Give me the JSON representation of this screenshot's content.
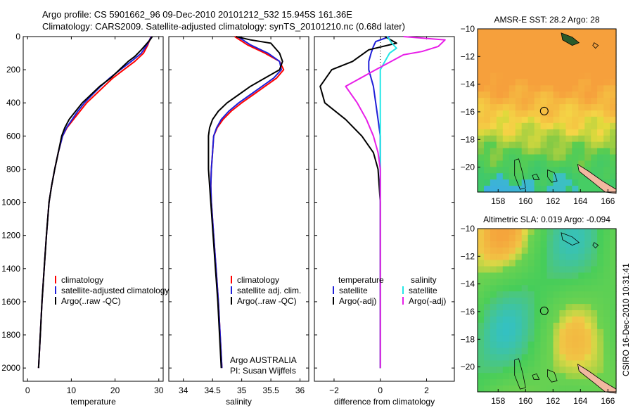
{
  "header": {
    "line1": "Argo profile: CS 5901662_96 09-Dec-2010 20101212_532 15.945S 161.36E",
    "line2": "Climatology: CARS2009. Satellite-adjusted climatology: synTS_20101210.nc (0.68d later)"
  },
  "side_label": "CSIRO 16-Dec-2010 10:31:41",
  "credit": {
    "line1": "Argo AUSTRALIA",
    "line2": "PI: Susan Wijffels"
  },
  "colors": {
    "red": "#ff0000",
    "blue": "#1f1fd8",
    "black": "#000000",
    "cyan": "#22e6e6",
    "magenta": "#e81ee8"
  },
  "chart_data": [
    {
      "type": "line",
      "xlabel": "temperature",
      "ylabel": "",
      "xlim": [
        -1,
        31
      ],
      "ylim": [
        2080,
        0
      ],
      "x_ticks": [
        0,
        10,
        20,
        30
      ],
      "y_ticks": [
        0,
        200,
        400,
        600,
        800,
        1000,
        1200,
        1400,
        1600,
        1800,
        2000
      ],
      "legend": [
        "climatology",
        "satellite-adjusted climatology",
        "Argo(..raw -QC)"
      ],
      "series": [
        {
          "name": "climatology",
          "color": "red",
          "points": [
            [
              28.2,
              0
            ],
            [
              27.5,
              50
            ],
            [
              26.5,
              100
            ],
            [
              24.5,
              150
            ],
            [
              22,
              200
            ],
            [
              19.5,
              250
            ],
            [
              17.5,
              300
            ],
            [
              15.5,
              350
            ],
            [
              13.5,
              400
            ],
            [
              12,
              450
            ],
            [
              10.5,
              500
            ],
            [
              9,
              550
            ],
            [
              8,
              600
            ],
            [
              7,
              700
            ],
            [
              6.2,
              800
            ],
            [
              5.5,
              900
            ],
            [
              4.9,
              1000
            ],
            [
              4.3,
              1200
            ],
            [
              3.8,
              1400
            ],
            [
              3.3,
              1600
            ],
            [
              2.9,
              1800
            ],
            [
              2.5,
              2000
            ]
          ]
        },
        {
          "name": "satellite-adjusted climatology",
          "color": "blue",
          "points": [
            [
              28.3,
              0
            ],
            [
              27.3,
              50
            ],
            [
              26,
              100
            ],
            [
              23.7,
              150
            ],
            [
              21.2,
              200
            ],
            [
              18.8,
              250
            ],
            [
              16.7,
              300
            ],
            [
              14.8,
              350
            ],
            [
              13,
              400
            ],
            [
              11.5,
              450
            ],
            [
              10.2,
              500
            ],
            [
              8.9,
              550
            ],
            [
              8,
              600
            ],
            [
              7,
              700
            ],
            [
              6.2,
              800
            ],
            [
              5.5,
              900
            ],
            [
              4.9,
              1000
            ],
            [
              4.3,
              1200
            ],
            [
              3.8,
              1400
            ],
            [
              3.3,
              1600
            ],
            [
              2.9,
              1800
            ],
            [
              2.5,
              2000
            ]
          ]
        },
        {
          "name": "Argo(..raw -QC)",
          "color": "black",
          "points": [
            [
              28.5,
              0
            ],
            [
              28,
              20
            ],
            [
              27,
              50
            ],
            [
              26,
              80
            ],
            [
              24.5,
              120
            ],
            [
              23,
              150
            ],
            [
              21,
              200
            ],
            [
              19,
              250
            ],
            [
              16.5,
              300
            ],
            [
              14.5,
              350
            ],
            [
              12.5,
              400
            ],
            [
              11,
              450
            ],
            [
              9.5,
              500
            ],
            [
              8.5,
              550
            ],
            [
              7.8,
              600
            ],
            [
              7,
              700
            ],
            [
              6.2,
              800
            ],
            [
              5.5,
              900
            ],
            [
              4.9,
              1000
            ],
            [
              4.3,
              1200
            ],
            [
              3.8,
              1400
            ],
            [
              3.3,
              1600
            ],
            [
              2.9,
              1800
            ],
            [
              2.5,
              2000
            ]
          ]
        }
      ]
    },
    {
      "type": "line",
      "xlabel": "salinity",
      "ylabel": "",
      "xlim": [
        33.75,
        36.15
      ],
      "ylim": [
        2080,
        0
      ],
      "x_ticks": [
        34,
        34.5,
        35,
        35.5,
        36
      ],
      "legend": [
        "climatology",
        "satellite adj. clim.",
        "Argo(..raw -QC)"
      ],
      "series": [
        {
          "name": "climatology",
          "color": "red",
          "points": [
            [
              34.88,
              0
            ],
            [
              35.1,
              50
            ],
            [
              35.4,
              100
            ],
            [
              35.65,
              150
            ],
            [
              35.72,
              200
            ],
            [
              35.6,
              250
            ],
            [
              35.4,
              300
            ],
            [
              35.2,
              350
            ],
            [
              35,
              400
            ],
            [
              34.82,
              450
            ],
            [
              34.68,
              500
            ],
            [
              34.58,
              550
            ],
            [
              34.52,
              600
            ],
            [
              34.5,
              700
            ],
            [
              34.48,
              800
            ],
            [
              34.47,
              900
            ],
            [
              34.48,
              1000
            ],
            [
              34.52,
              1200
            ],
            [
              34.56,
              1400
            ],
            [
              34.6,
              1600
            ],
            [
              34.63,
              1800
            ],
            [
              34.66,
              2000
            ]
          ]
        },
        {
          "name": "satellite adj. clim.",
          "color": "blue",
          "points": [
            [
              34.93,
              0
            ],
            [
              35.15,
              50
            ],
            [
              35.45,
              100
            ],
            [
              35.65,
              150
            ],
            [
              35.68,
              200
            ],
            [
              35.55,
              250
            ],
            [
              35.35,
              300
            ],
            [
              35.15,
              350
            ],
            [
              34.95,
              400
            ],
            [
              34.78,
              450
            ],
            [
              34.65,
              500
            ],
            [
              34.57,
              550
            ],
            [
              34.52,
              600
            ],
            [
              34.5,
              700
            ],
            [
              34.48,
              800
            ],
            [
              34.47,
              900
            ],
            [
              34.48,
              1000
            ],
            [
              34.52,
              1200
            ],
            [
              34.56,
              1400
            ],
            [
              34.6,
              1600
            ],
            [
              34.63,
              1800
            ],
            [
              34.66,
              2000
            ]
          ]
        },
        {
          "name": "Argo(..raw -QC)",
          "color": "black",
          "points": [
            [
              34.9,
              0
            ],
            [
              35.15,
              20
            ],
            [
              35.5,
              40
            ],
            [
              35.55,
              60
            ],
            [
              35.65,
              100
            ],
            [
              35.7,
              150
            ],
            [
              35.65,
              200
            ],
            [
              35.4,
              250
            ],
            [
              35.15,
              300
            ],
            [
              34.95,
              350
            ],
            [
              34.75,
              400
            ],
            [
              34.6,
              450
            ],
            [
              34.5,
              500
            ],
            [
              34.45,
              550
            ],
            [
              34.43,
              600
            ],
            [
              34.43,
              700
            ],
            [
              34.43,
              800
            ],
            [
              34.45,
              900
            ],
            [
              34.47,
              1000
            ],
            [
              34.51,
              1200
            ],
            [
              34.55,
              1400
            ],
            [
              34.59,
              1600
            ],
            [
              34.62,
              1800
            ],
            [
              34.65,
              2000
            ]
          ]
        }
      ]
    },
    {
      "type": "line",
      "xlabel": "difference from climatology",
      "ylabel": "",
      "xlim": [
        -2.85,
        3.2
      ],
      "ylim": [
        2080,
        0
      ],
      "x_ticks": [
        -2,
        0,
        2
      ],
      "legend_temperature": {
        "title": "temperature",
        "items": [
          "satellite",
          "Argo(-adj)"
        ]
      },
      "legend_salinity": {
        "title": "salinity",
        "items": [
          "satellite",
          "Argo(-adj)"
        ]
      },
      "series": [
        {
          "name": "temperature satellite",
          "color": "blue",
          "points": [
            [
              0.4,
              0
            ],
            [
              -0.2,
              30
            ],
            [
              -0.3,
              60
            ],
            [
              -0.4,
              100
            ],
            [
              -0.5,
              150
            ],
            [
              -0.5,
              200
            ],
            [
              -0.4,
              250
            ],
            [
              -0.3,
              300
            ],
            [
              -0.2,
              400
            ],
            [
              -0.1,
              500
            ],
            [
              0,
              600
            ],
            [
              0,
              800
            ],
            [
              0,
              2000
            ]
          ]
        },
        {
          "name": "temperature Argo(-adj)",
          "color": "black",
          "points": [
            [
              0.2,
              0
            ],
            [
              0.7,
              40
            ],
            [
              -0.5,
              80
            ],
            [
              -1.2,
              150
            ],
            [
              -2.1,
              200
            ],
            [
              -2.6,
              300
            ],
            [
              -2.4,
              400
            ],
            [
              -1.5,
              500
            ],
            [
              -0.8,
              600
            ],
            [
              -0.3,
              700
            ],
            [
              -0.1,
              800
            ],
            [
              0,
              1000
            ],
            [
              0,
              2000
            ]
          ]
        },
        {
          "name": "salinity satellite",
          "color": "cyan",
          "points": [
            [
              0.3,
              0
            ],
            [
              0.5,
              40
            ],
            [
              0.7,
              70
            ],
            [
              0.4,
              100
            ],
            [
              0.2,
              150
            ],
            [
              0,
              200
            ],
            [
              0,
              300
            ],
            [
              0,
              500
            ],
            [
              0,
              700
            ],
            [
              0,
              900
            ],
            [
              0,
              2000
            ]
          ]
        },
        {
          "name": "salinity Argo(-adj)",
          "color": "magenta",
          "points": [
            [
              1,
              0
            ],
            [
              2.8,
              20
            ],
            [
              2.5,
              60
            ],
            [
              1.8,
              90
            ],
            [
              1,
              110
            ],
            [
              -0.2,
              200
            ],
            [
              -1.5,
              300
            ],
            [
              -1,
              400
            ],
            [
              -0.6,
              500
            ],
            [
              -0.3,
              600
            ],
            [
              -0.1,
              700
            ],
            [
              0,
              800
            ],
            [
              0,
              1000
            ],
            [
              0,
              2000
            ]
          ]
        }
      ]
    },
    {
      "type": "heatmap",
      "title": "AMSR-E SST: 28.2 Argo: 28",
      "xlim": [
        156.5,
        166.6
      ],
      "ylim": [
        -21.8,
        -10
      ],
      "x_ticks": [
        158,
        160,
        162,
        164,
        166
      ],
      "y_ticks": [
        -10,
        -12,
        -14,
        -16,
        -18,
        -20
      ],
      "marker": {
        "lon": 161.36,
        "lat": -15.945
      }
    },
    {
      "type": "heatmap",
      "title": "Altimetric SLA: 0.019 Argo: -0.094",
      "xlim": [
        156.5,
        166.6
      ],
      "ylim": [
        -21.8,
        -10
      ],
      "x_ticks": [
        158,
        160,
        162,
        164,
        166
      ],
      "y_ticks": [
        -10,
        -12,
        -14,
        -16,
        -18,
        -20
      ],
      "marker": {
        "lon": 161.36,
        "lat": -15.945
      }
    }
  ]
}
